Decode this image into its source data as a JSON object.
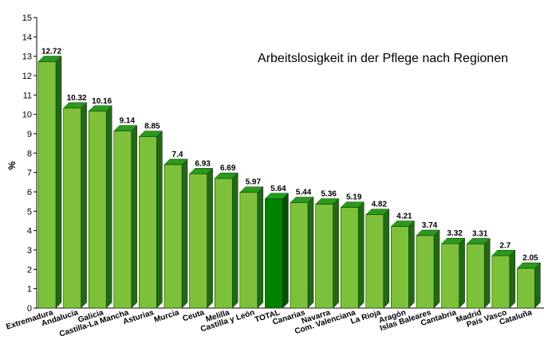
{
  "chart_data": {
    "type": "bar",
    "title": "Arbeitslosigkeit in der Pflege nach Regionen",
    "ylabel": "%",
    "ylim": [
      0,
      15
    ],
    "yticks": [
      0,
      1,
      2,
      3,
      4,
      5,
      6,
      7,
      8,
      9,
      10,
      11,
      12,
      13,
      14,
      15
    ],
    "grid": false,
    "legend": "none",
    "categories": [
      "Extremadura",
      "Andalucía",
      "Galicia",
      "Castilla-La Mancha",
      "Asturias",
      "Murcia",
      "Ceuta",
      "Melilla",
      "Castilla y León",
      "TOTAL",
      "Canarias",
      "Navarra",
      "Com. Valenciana",
      "La Rioja",
      "Aragón",
      "Islas Baleares",
      "Cantabria",
      "Madrid",
      "País Vasco",
      "Cataluña"
    ],
    "values": [
      12.72,
      10.32,
      10.16,
      9.14,
      8.85,
      7.4,
      6.93,
      6.69,
      5.97,
      5.64,
      5.44,
      5.36,
      5.19,
      4.82,
      4.21,
      3.74,
      3.32,
      3.31,
      2.7,
      2.05
    ],
    "value_labels": [
      "12.72",
      "10.32",
      "10.16",
      "9.14",
      "8.85",
      "7.4",
      "6.93",
      "6.69",
      "5.97",
      "5.64",
      "5.44",
      "5.36",
      "5.19",
      "4.82",
      "4.21",
      "3.74",
      "3.32",
      "3.31",
      "2.7",
      "2.05"
    ],
    "colors": {
      "bar_front": "#7dc13a",
      "bar_side": "#1f6b10",
      "bar_top": "#2a9a1c",
      "highlight_front": "#008000",
      "highlight_side": "#005000",
      "highlight_top": "#1aa01a",
      "axis": "#000000"
    },
    "highlight_category": "TOTAL"
  }
}
